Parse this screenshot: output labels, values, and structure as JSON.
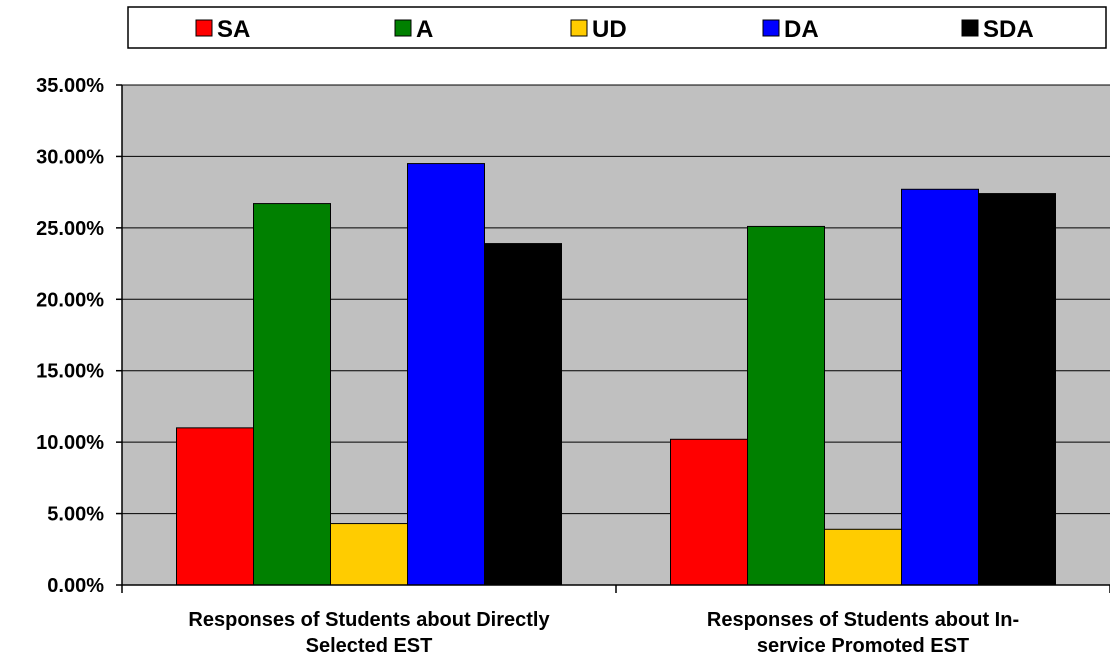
{
  "chart_data": {
    "type": "bar",
    "categories": [
      [
        "Responses of Students about Directly",
        "Selected EST"
      ],
      [
        "Responses of Students about In-",
        "service Promoted EST"
      ]
    ],
    "series": [
      {
        "name": "SA",
        "color": "#ff0000",
        "values": [
          0.11,
          0.102
        ]
      },
      {
        "name": "A",
        "color": "#008000",
        "values": [
          0.267,
          0.251
        ]
      },
      {
        "name": "UD",
        "color": "#ffcc00",
        "values": [
          0.043,
          0.039
        ]
      },
      {
        "name": "DA",
        "color": "#0000ff",
        "values": [
          0.295,
          0.277
        ]
      },
      {
        "name": "SDA",
        "color": "#000000",
        "values": [
          0.239,
          0.274
        ]
      }
    ],
    "yticks": [
      "0.00%",
      "5.00%",
      "10.00%",
      "15.00%",
      "20.00%",
      "25.00%",
      "30.00%",
      "35.00%"
    ],
    "ylim": [
      0,
      0.35
    ],
    "grid": true,
    "plot_background": "#c0c0c0",
    "legend_position": "top"
  }
}
